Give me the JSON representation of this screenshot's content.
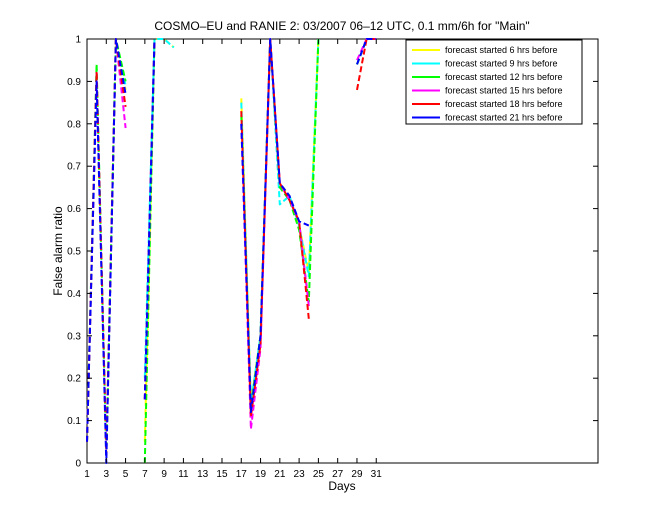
{
  "chart_data": {
    "type": "line",
    "title": "COSMO–EU and RANIE 2: 03/2007 06–12 UTC, 0.1 mm/6h for \"Main\"",
    "xlabel": "Days",
    "ylabel": "False alarm ratio",
    "xlim": [
      1,
      54
    ],
    "ylim": [
      0,
      1
    ],
    "x_ticks": [
      1,
      3,
      5,
      7,
      9,
      11,
      13,
      15,
      17,
      19,
      21,
      23,
      25,
      27,
      29,
      31
    ],
    "y_ticks": [
      0,
      0.1,
      0.2,
      0.3,
      0.4,
      0.5,
      0.6,
      0.7,
      0.8,
      0.9,
      1
    ],
    "y_tick_labels": [
      "0",
      "0.1",
      "0.2",
      "0.3",
      "0.4",
      "0.5",
      "0.6",
      "0.7",
      "0.8",
      "0.9",
      "1"
    ],
    "grid": false,
    "legend_position": "top-right",
    "line_style": "dashed",
    "series": [
      {
        "name": "forecast started 6 hrs before",
        "color": "#ffff00",
        "segments": [
          [
            [
              1,
              0.05
            ],
            [
              2,
              0.92
            ],
            [
              3,
              0.02
            ],
            [
              4,
              1.0
            ],
            [
              5,
              0.88
            ]
          ],
          [
            [
              7,
              0.05
            ],
            [
              8,
              1.0
            ],
            [
              9,
              1.0
            ],
            [
              10,
              0.98
            ]
          ],
          [
            [
              17,
              0.86
            ],
            [
              18,
              0.14
            ],
            [
              19,
              0.3
            ],
            [
              20,
              1.0
            ],
            [
              21,
              0.66
            ],
            [
              22,
              0.63
            ],
            [
              23,
              0.56
            ],
            [
              24,
              0.45
            ],
            [
              25,
              1.0
            ]
          ],
          [
            [
              29,
              0.94
            ],
            [
              30,
              1.0
            ],
            [
              31,
              1.0
            ]
          ]
        ]
      },
      {
        "name": "forecast started 9 hrs before",
        "color": "#00ffff",
        "segments": [
          [
            [
              1,
              0.05
            ],
            [
              2,
              0.93
            ],
            [
              3,
              0.02
            ],
            [
              4,
              1.0
            ],
            [
              5,
              0.89
            ]
          ],
          [
            [
              7,
              0.2
            ],
            [
              8,
              1.0
            ],
            [
              9,
              1.0
            ],
            [
              10,
              0.98
            ]
          ],
          [
            [
              17,
              0.85
            ],
            [
              18,
              0.14
            ],
            [
              19,
              0.3
            ],
            [
              20,
              1.0
            ],
            [
              21,
              0.61
            ],
            [
              22,
              0.63
            ],
            [
              23,
              0.56
            ],
            [
              24,
              0.44
            ],
            [
              25,
              1.0
            ]
          ],
          [
            [
              29,
              0.94
            ],
            [
              30,
              1.0
            ],
            [
              31,
              1.0
            ]
          ]
        ]
      },
      {
        "name": "forecast started 12 hrs before",
        "color": "#00ff00",
        "segments": [
          [
            [
              1,
              0.05
            ],
            [
              2,
              0.94
            ],
            [
              3,
              0.02
            ],
            [
              4,
              1.0
            ],
            [
              5,
              0.9
            ]
          ],
          [
            [
              7,
              0.0
            ],
            [
              8,
              1.0
            ]
          ],
          [
            [
              17,
              0.82
            ],
            [
              18,
              0.13
            ],
            [
              19,
              0.3
            ],
            [
              20,
              1.0
            ],
            [
              21,
              0.65
            ],
            [
              22,
              0.62
            ],
            [
              23,
              0.55
            ],
            [
              24,
              0.38
            ],
            [
              25,
              1.0
            ]
          ],
          [
            [
              29,
              0.94
            ],
            [
              30,
              1.0
            ],
            [
              31,
              1.0
            ]
          ]
        ]
      },
      {
        "name": "forecast started 15 hrs before",
        "color": "#ff00ff",
        "segments": [
          [
            [
              1,
              0.05
            ],
            [
              2,
              0.92
            ],
            [
              3,
              0.02
            ],
            [
              4,
              1.0
            ],
            [
              5,
              0.79
            ]
          ],
          [
            [
              7,
              0.15
            ],
            [
              8,
              1.0
            ]
          ],
          [
            [
              17,
              0.8
            ],
            [
              18,
              0.08
            ],
            [
              19,
              0.27
            ],
            [
              20,
              1.0
            ],
            [
              21,
              0.66
            ],
            [
              22,
              0.62
            ],
            [
              23,
              0.57
            ],
            [
              24,
              0.37
            ]
          ],
          [
            [
              29,
              0.95
            ],
            [
              30,
              1.0
            ],
            [
              31,
              1.0
            ]
          ]
        ]
      },
      {
        "name": "forecast started 18 hrs before",
        "color": "#ff0000",
        "segments": [
          [
            [
              1,
              0.05
            ],
            [
              2,
              0.92
            ],
            [
              3,
              0.02
            ],
            [
              4,
              1.0
            ],
            [
              5,
              0.84
            ]
          ],
          [
            [
              7,
              0.15
            ],
            [
              8,
              1.0
            ]
          ],
          [
            [
              17,
              0.83
            ],
            [
              18,
              0.11
            ],
            [
              19,
              0.28
            ],
            [
              20,
              1.0
            ],
            [
              21,
              0.66
            ],
            [
              22,
              0.62
            ],
            [
              23,
              0.57
            ],
            [
              24,
              0.34
            ]
          ],
          [
            [
              29,
              0.88
            ],
            [
              30,
              1.0
            ],
            [
              31,
              1.0
            ]
          ]
        ]
      },
      {
        "name": "forecast started 21 hrs before",
        "color": "#0000ff",
        "segments": [
          [
            [
              1,
              0.05
            ],
            [
              2,
              0.9
            ],
            [
              3,
              0.0
            ],
            [
              4,
              1.0
            ],
            [
              5,
              0.87
            ]
          ],
          [
            [
              7,
              0.15
            ],
            [
              8,
              1.0
            ]
          ],
          [
            [
              17,
              0.8
            ],
            [
              18,
              0.12
            ],
            [
              19,
              0.3
            ],
            [
              20,
              1.0
            ],
            [
              21,
              0.66
            ],
            [
              22,
              0.63
            ],
            [
              23,
              0.57
            ],
            [
              24,
              0.56
            ]
          ],
          [
            [
              29,
              0.94
            ],
            [
              30,
              1.0
            ],
            [
              31,
              1.0
            ]
          ]
        ]
      }
    ]
  }
}
